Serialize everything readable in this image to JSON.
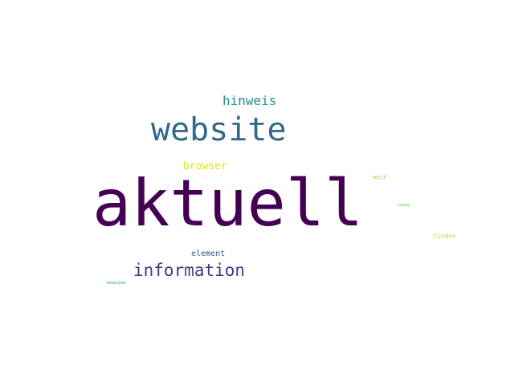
{
  "word_cloud": {
    "background": "#ffffff",
    "words": [
      {
        "id": "aktuell",
        "text": "aktuell",
        "color": "#440154"
      },
      {
        "id": "website",
        "text": "website",
        "color": "#31688e"
      },
      {
        "id": "information",
        "text": "information",
        "color": "#443983"
      },
      {
        "id": "hinweis",
        "text": "hinweis",
        "color": "#21918c"
      },
      {
        "id": "browser",
        "text": "browser",
        "color": "#dde318"
      },
      {
        "id": "element",
        "text": "element",
        "color": "#3b528b"
      },
      {
        "id": "finden",
        "text": "finden",
        "color": "#c8e020"
      },
      {
        "id": "weit",
        "text": "weit",
        "color": "#a0da39"
      },
      {
        "id": "zudeg",
        "text": "zudeg",
        "color": "#5ec962"
      },
      {
        "id": "besuchen",
        "text": "besuchen",
        "color": "#1fa187"
      }
    ]
  }
}
